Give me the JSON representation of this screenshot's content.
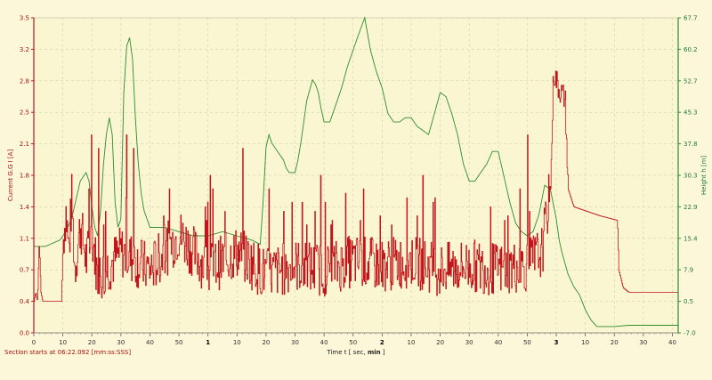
{
  "chart_data": {
    "type": "line",
    "footer": "Section starts at 06:22.092 [mm:ss:SSS]",
    "xlabel": "Time  t  [ sec, ",
    "xlabel_unit": "min",
    "xlabel_close": " ]",
    "ylabel_left": "Current  G.G  I  [A]",
    "ylabel_right": "Height  h  [m]",
    "xlim": [
      0,
      222
    ],
    "ylim_left": [
      0.0,
      3.5
    ],
    "ylim_right": [
      -7.0,
      67.7
    ],
    "x_ticks": [
      {
        "v": 0,
        "label": "0"
      },
      {
        "v": 10,
        "label": "10"
      },
      {
        "v": 20,
        "label": "20"
      },
      {
        "v": 30,
        "label": "30"
      },
      {
        "v": 40,
        "label": "40"
      },
      {
        "v": 50,
        "label": "50"
      },
      {
        "v": 60,
        "label": "1",
        "bold": true
      },
      {
        "v": 70,
        "label": "10"
      },
      {
        "v": 80,
        "label": "20"
      },
      {
        "v": 90,
        "label": "30"
      },
      {
        "v": 100,
        "label": "40"
      },
      {
        "v": 110,
        "label": "50"
      },
      {
        "v": 120,
        "label": "2",
        "bold": true
      },
      {
        "v": 130,
        "label": "10"
      },
      {
        "v": 140,
        "label": "20"
      },
      {
        "v": 150,
        "label": "30"
      },
      {
        "v": 160,
        "label": "40"
      },
      {
        "v": 170,
        "label": "50"
      },
      {
        "v": 180,
        "label": "3",
        "bold": true
      },
      {
        "v": 190,
        "label": "10"
      },
      {
        "v": 200,
        "label": "20"
      },
      {
        "v": 210,
        "label": "30"
      },
      {
        "v": 220,
        "label": "40"
      }
    ],
    "y_left_ticks": [
      "0.0",
      "0.4",
      "0.7",
      "1.1",
      "1.4",
      "1.8",
      "2.1",
      "2.5",
      "2.8",
      "3.2",
      "3.5"
    ],
    "y_right_ticks": [
      "-7.0",
      "0.5",
      "7.9",
      "15.4",
      "22.9",
      "30.3",
      "37.8",
      "45.3",
      "52.7",
      "60.2",
      "67.7"
    ],
    "grid": true,
    "colors": {
      "current": "#c0161b",
      "height": "#2e8b2e",
      "left_axis": "#c0161b",
      "right_axis": "#2e8b2e",
      "grid": "#c9c9a6"
    },
    "series": [
      {
        "name": "Current",
        "axis": "left",
        "base_level": 0.75,
        "points": [
          [
            0,
            0.35
          ],
          [
            0.6,
            0.45
          ],
          [
            1.2,
            0.35
          ],
          [
            1.8,
            1.0
          ],
          [
            2.4,
            0.45
          ],
          [
            3,
            0.35
          ],
          [
            9.5,
            0.35
          ],
          [
            10,
            1.0
          ],
          [
            11,
            1.35
          ],
          [
            12,
            0.9
          ],
          [
            13,
            1.5
          ],
          [
            14,
            0.7
          ],
          [
            16,
            1.2
          ],
          [
            18,
            0.8
          ],
          [
            20,
            1.1
          ],
          [
            22,
            0.6
          ],
          [
            30,
            0.9
          ],
          [
            40,
            0.7
          ],
          [
            50,
            1.1
          ],
          [
            60,
            0.7
          ],
          [
            70,
            0.9
          ],
          [
            80,
            0.65
          ],
          [
            90,
            0.75
          ],
          [
            100,
            0.7
          ],
          [
            110,
            0.8
          ],
          [
            120,
            0.75
          ],
          [
            130,
            0.8
          ],
          [
            140,
            0.7
          ],
          [
            150,
            0.75
          ],
          [
            160,
            0.7
          ],
          [
            170,
            0.75
          ],
          [
            175,
            0.9
          ],
          [
            177,
            1.4
          ],
          [
            178,
            1.6
          ],
          [
            179,
            2.9
          ],
          [
            181,
            2.7
          ],
          [
            183,
            2.6
          ],
          [
            184,
            1.6
          ],
          [
            186,
            1.4
          ],
          [
            195,
            1.3
          ],
          [
            201,
            1.25
          ],
          [
            201.5,
            0.7
          ],
          [
            203,
            0.5
          ],
          [
            205,
            0.45
          ],
          [
            222,
            0.45
          ]
        ],
        "spikes_to": [
          1.45,
          2.05,
          1.6,
          1.25,
          1.45,
          1.35,
          1.6,
          2.2,
          1.45,
          1.3,
          1.85,
          1.75,
          1.2,
          1.55,
          1.4,
          1.35,
          1.25,
          1.45,
          1.2,
          1.5
        ]
      },
      {
        "name": "Height",
        "axis": "right",
        "points": [
          [
            0,
            13.5
          ],
          [
            4,
            13.5
          ],
          [
            9,
            15
          ],
          [
            10,
            16
          ],
          [
            11,
            17
          ],
          [
            12,
            18.5
          ],
          [
            13,
            20
          ],
          [
            14,
            23
          ],
          [
            16,
            29
          ],
          [
            18,
            31
          ],
          [
            19,
            29
          ],
          [
            20,
            23
          ],
          [
            21,
            18
          ],
          [
            22,
            16
          ],
          [
            23,
            22
          ],
          [
            24,
            33
          ],
          [
            25,
            40
          ],
          [
            26,
            44
          ],
          [
            27,
            40
          ],
          [
            28,
            24
          ],
          [
            29,
            18
          ],
          [
            30,
            20
          ],
          [
            31,
            50
          ],
          [
            32,
            61
          ],
          [
            33,
            63
          ],
          [
            34,
            58
          ],
          [
            35,
            44
          ],
          [
            36,
            33
          ],
          [
            37,
            26
          ],
          [
            38,
            22
          ],
          [
            40,
            18
          ],
          [
            45,
            18
          ],
          [
            50,
            17
          ],
          [
            55,
            16
          ],
          [
            60,
            16
          ],
          [
            65,
            17
          ],
          [
            70,
            16
          ],
          [
            75,
            15
          ],
          [
            78,
            14
          ],
          [
            79,
            24
          ],
          [
            80,
            37
          ],
          [
            81,
            40
          ],
          [
            82,
            38
          ],
          [
            84,
            36
          ],
          [
            86,
            34
          ],
          [
            87,
            32
          ],
          [
            88,
            31
          ],
          [
            90,
            31
          ],
          [
            91,
            34
          ],
          [
            92,
            38
          ],
          [
            94,
            48
          ],
          [
            96,
            53
          ],
          [
            97,
            52
          ],
          [
            98,
            50
          ],
          [
            99,
            46
          ],
          [
            100,
            43
          ],
          [
            102,
            43
          ],
          [
            104,
            47
          ],
          [
            106,
            51
          ],
          [
            108,
            56
          ],
          [
            110,
            60
          ],
          [
            112,
            64
          ],
          [
            114,
            67.7
          ],
          [
            116,
            60
          ],
          [
            118,
            55
          ],
          [
            120,
            51
          ],
          [
            122,
            45
          ],
          [
            124,
            43
          ],
          [
            126,
            43
          ],
          [
            128,
            44
          ],
          [
            130,
            44
          ],
          [
            132,
            42
          ],
          [
            134,
            41
          ],
          [
            136,
            40
          ],
          [
            138,
            45
          ],
          [
            140,
            50
          ],
          [
            142,
            49
          ],
          [
            144,
            45
          ],
          [
            146,
            40
          ],
          [
            148,
            33
          ],
          [
            150,
            29
          ],
          [
            152,
            29
          ],
          [
            154,
            31
          ],
          [
            156,
            33
          ],
          [
            158,
            36
          ],
          [
            160,
            36
          ],
          [
            162,
            30
          ],
          [
            164,
            24
          ],
          [
            166,
            19
          ],
          [
            168,
            17
          ],
          [
            170,
            16
          ],
          [
            172,
            17
          ],
          [
            174,
            21
          ],
          [
            176,
            28
          ],
          [
            178,
            27
          ],
          [
            180,
            20
          ],
          [
            181,
            15
          ],
          [
            182,
            12
          ],
          [
            184,
            7
          ],
          [
            186,
            4
          ],
          [
            188,
            2
          ],
          [
            190,
            -1.5
          ],
          [
            192,
            -4
          ],
          [
            194,
            -5.5
          ],
          [
            200,
            -5.5
          ],
          [
            205,
            -5.2
          ],
          [
            215,
            -5.2
          ],
          [
            222,
            -5.2
          ]
        ]
      }
    ]
  }
}
